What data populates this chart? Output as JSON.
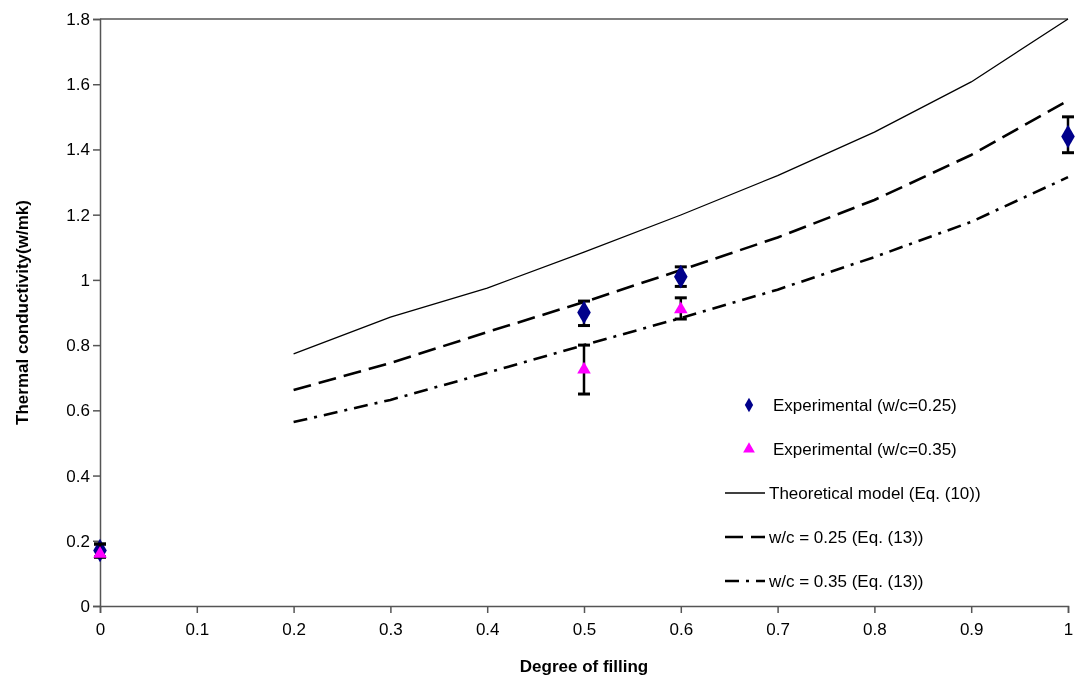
{
  "chart_data": {
    "type": "line",
    "xlabel": "Degree of filling",
    "ylabel": "Thermal conductivity(w/mk)",
    "xlim": [
      0,
      1
    ],
    "xticks": [
      0,
      0.1,
      0.2,
      0.3,
      0.4,
      0.5,
      0.6,
      0.7,
      0.8,
      0.9,
      1
    ],
    "ylim": [
      0,
      1.8
    ],
    "yticks": [
      0,
      0.2,
      0.4,
      0.6,
      0.8,
      1,
      1.2,
      1.4,
      1.6,
      1.8
    ],
    "grid": false,
    "legend": "bottom right",
    "series": [
      {
        "name": "Experimental (w/c=0.25)",
        "type": "scatter",
        "marker": "diamond",
        "color": "#00008b",
        "x": [
          0,
          0.5,
          0.6,
          1
        ],
        "values": [
          0.17,
          0.9,
          1.01,
          1.44
        ],
        "errors": [
          [
            0.15,
            0.19
          ],
          [
            0.86,
            0.935
          ],
          [
            0.98,
            1.04
          ],
          [
            1.39,
            1.5
          ]
        ]
      },
      {
        "name": "Experimental (w/c=0.35)",
        "type": "scatter",
        "marker": "triangle",
        "color": "#ff00ff",
        "x": [
          0,
          0.5,
          0.6
        ],
        "values": [
          0.16,
          0.725,
          0.91
        ],
        "errors": [
          [
            0.15,
            0.19
          ],
          [
            0.65,
            0.8
          ],
          [
            0.88,
            0.945
          ]
        ]
      },
      {
        "name": "Theoretical model (Eq. (10))",
        "type": "line",
        "line_style": "solid",
        "color": "#000000",
        "x": [
          0.2,
          0.3,
          0.4,
          0.5,
          0.6,
          0.7,
          0.8,
          0.9,
          1
        ],
        "values": [
          0.773,
          0.886,
          0.975,
          1.085,
          1.199,
          1.32,
          1.453,
          1.607,
          1.8
        ]
      },
      {
        "name": "w/c = 0.25 (Eq. (13))",
        "type": "line",
        "line_style": "dashed",
        "color": "#000000",
        "x": [
          0.2,
          0.3,
          0.4,
          0.5,
          0.6,
          0.7,
          0.8,
          0.9,
          1
        ],
        "values": [
          0.662,
          0.745,
          0.84,
          0.932,
          1.03,
          1.13,
          1.245,
          1.383,
          1.55
        ]
      },
      {
        "name": "w/c = 0.35 (Eq. (13))",
        "type": "line",
        "line_style": "dashdot",
        "color": "#000000",
        "x": [
          0.2,
          0.3,
          0.4,
          0.5,
          0.6,
          0.7,
          0.8,
          0.9,
          1
        ],
        "values": [
          0.564,
          0.632,
          0.715,
          0.8,
          0.883,
          0.97,
          1.07,
          1.178,
          1.315
        ]
      }
    ]
  }
}
